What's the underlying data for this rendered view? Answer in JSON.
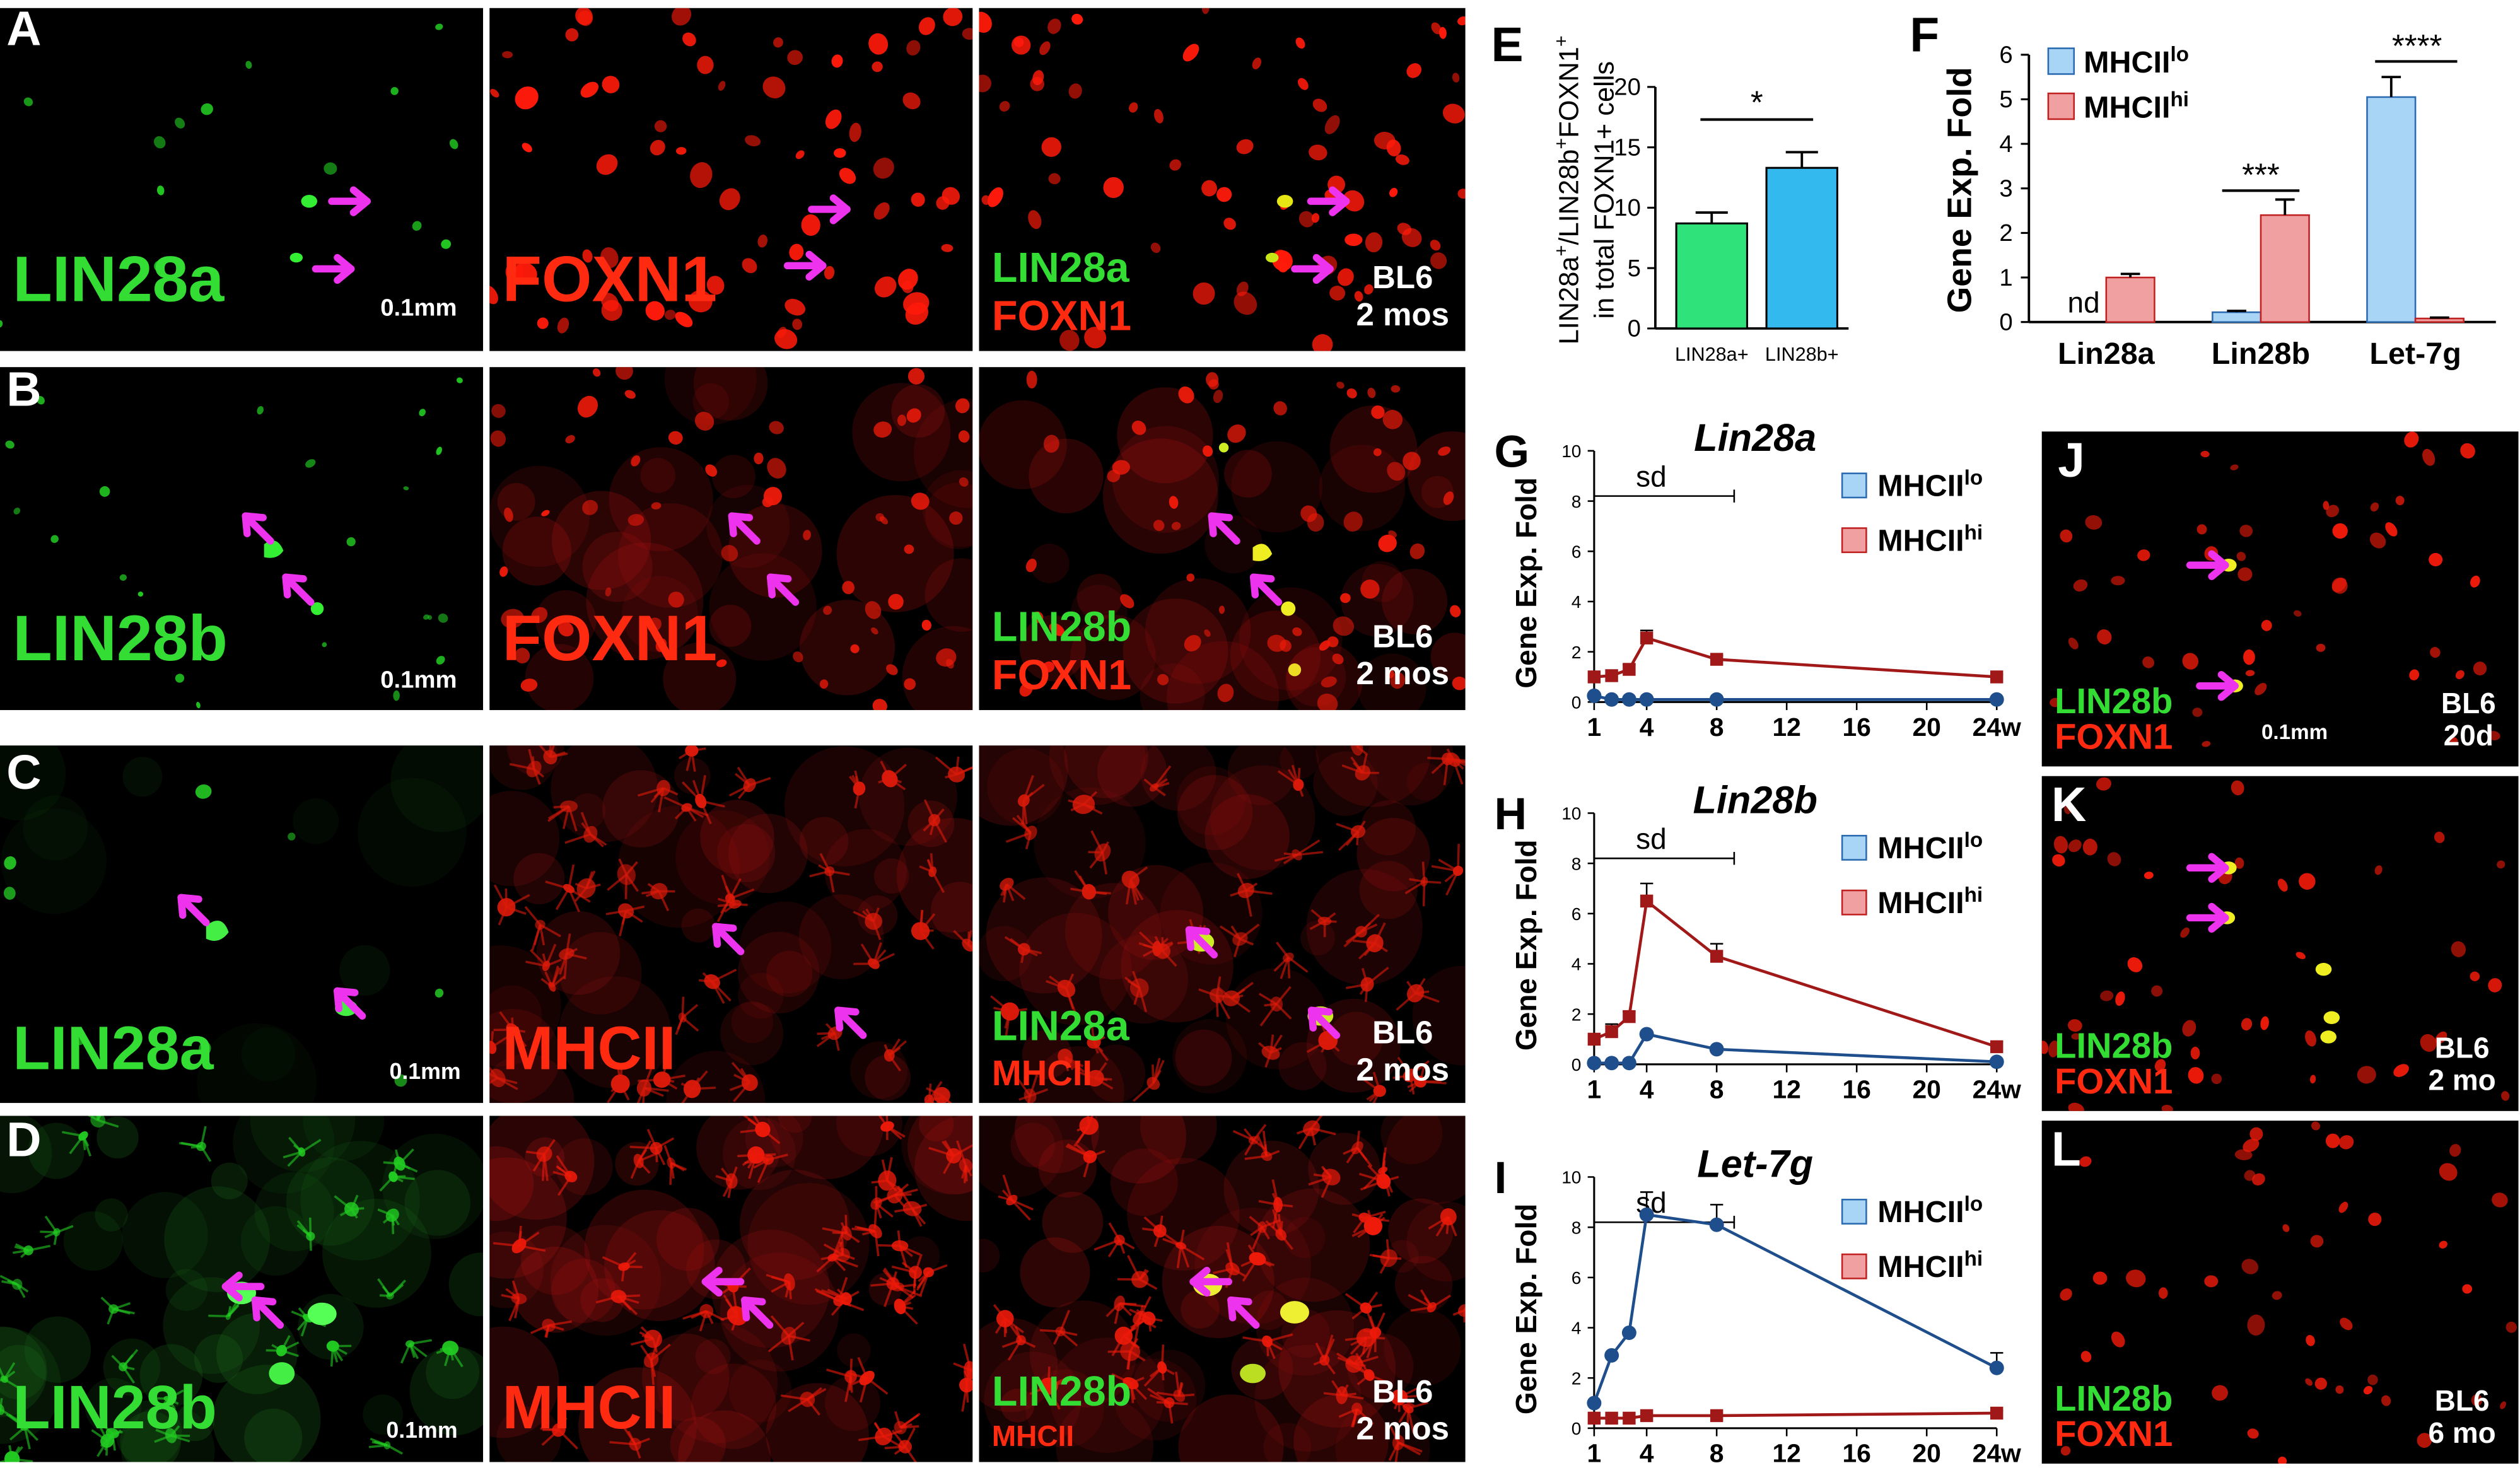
{
  "panels": {
    "A": {
      "letter": "A",
      "stain_left": "LIN28a",
      "stain_mid": "FOXN1",
      "merge_green": "LIN28a",
      "merge_red": "FOXN1",
      "strain": "BL6",
      "age": "2 mos",
      "scale": "0.1mm"
    },
    "B": {
      "letter": "B",
      "stain_left": "LIN28b",
      "stain_mid": "FOXN1",
      "merge_green": "LIN28b",
      "merge_red": "FOXN1",
      "strain": "BL6",
      "age": "2 mos",
      "scale": "0.1mm"
    },
    "C": {
      "letter": "C",
      "stain_left": "LIN28a",
      "stain_mid": "MHCII",
      "merge_green": "LIN28a",
      "merge_red": "MHCII",
      "strain": "BL6",
      "age": "2 mos",
      "scale": "0.1mm"
    },
    "D": {
      "letter": "D",
      "stain_left": "LIN28b",
      "stain_mid": "MHCII",
      "merge_green": "LIN28b",
      "merge_red": "MHCII",
      "strain": "BL6",
      "age": "2 mos",
      "scale": "0.1mm"
    },
    "J": {
      "letter": "J",
      "green": "LIN28b",
      "red": "FOXN1",
      "strain": "BL6",
      "age": "20d",
      "scale": "0.1mm"
    },
    "K": {
      "letter": "K",
      "green": "LIN28b",
      "red": "FOXN1",
      "strain": "BL6",
      "age": "2 mo"
    },
    "L": {
      "letter": "L",
      "green": "LIN28b",
      "red": "FOXN1",
      "strain": "BL6",
      "age": "6 mo"
    }
  },
  "colors": {
    "green_stain": "#33dd33",
    "red_stain": "#ff2a10",
    "arrow": "#ee33ee",
    "lo_series": "#1f4e8c",
    "hi_series": "#a01818",
    "bar_green": "#2fe37a",
    "bar_blue": "#33b9ee"
  },
  "chart_data": [
    {
      "panel": "E",
      "type": "bar",
      "ylabel_parts": [
        "LIN28a",
        "+",
        "/LIN28b",
        "+",
        "FOXN1",
        "+"
      ],
      "ylabel_line2": "in total FOXN1+ cells",
      "categories": [
        "LIN28a+",
        "LIN28b+"
      ],
      "values": [
        8.7,
        13.3
      ],
      "errors": [
        0.9,
        1.3
      ],
      "colors": [
        "#2fe37a",
        "#33b9ee"
      ],
      "ylim": [
        0,
        20
      ],
      "yticks": [
        0,
        5,
        10,
        15,
        20
      ],
      "significance": "*"
    },
    {
      "panel": "F",
      "type": "bar",
      "ylabel": "Gene Exp. Fold",
      "categories": [
        "Lin28a",
        "Lin28b",
        "Let-7g"
      ],
      "series": [
        {
          "name": "MHCII",
          "sup": "lo",
          "values": [
            0,
            0.22,
            5.05
          ],
          "errors": [
            0,
            0.03,
            0.45
          ]
        },
        {
          "name": "MHCII",
          "sup": "hi",
          "values": [
            1.0,
            2.4,
            0.08
          ],
          "errors": [
            0.08,
            0.35,
            0.02
          ]
        }
      ],
      "annotations": [
        "nd",
        "***",
        "****"
      ],
      "ylim": [
        0,
        6
      ],
      "yticks": [
        0,
        1,
        2,
        3,
        4,
        5,
        6
      ]
    },
    {
      "panel": "G",
      "type": "line",
      "title": "Lin28a",
      "ylabel": "Gene Exp. Fold",
      "x": [
        1,
        2,
        3,
        4,
        8,
        24
      ],
      "series": [
        {
          "name": "MHCII",
          "sup": "lo",
          "values": [
            0.25,
            0.1,
            0.1,
            0.1,
            0.1,
            0.1
          ],
          "errors": [
            0,
            0,
            0,
            0,
            0,
            0
          ]
        },
        {
          "name": "MHCII",
          "sup": "hi",
          "values": [
            1.0,
            1.05,
            1.3,
            2.55,
            1.7,
            1.0
          ],
          "errors": [
            0,
            0,
            0.2,
            0.3,
            0.15,
            0.1
          ]
        }
      ],
      "xticks": [
        "1",
        "4",
        "8",
        "12",
        "16",
        "20",
        "24w"
      ],
      "xtick_vals": [
        1,
        4,
        8,
        12,
        16,
        20,
        24
      ],
      "ylim": [
        0,
        10
      ],
      "yticks": [
        0,
        2,
        4,
        6,
        8,
        10
      ],
      "sd_label": "sd",
      "sd_range": [
        1,
        9
      ]
    },
    {
      "panel": "H",
      "type": "line",
      "title": "Lin28b",
      "ylabel": "Gene Exp. Fold",
      "x": [
        1,
        2,
        3,
        4,
        8,
        24
      ],
      "series": [
        {
          "name": "MHCII",
          "sup": "lo",
          "values": [
            0.05,
            0.05,
            0.05,
            1.2,
            0.6,
            0.1
          ],
          "errors": [
            0,
            0,
            0,
            0.1,
            0.1,
            0
          ]
        },
        {
          "name": "MHCII",
          "sup": "hi",
          "values": [
            1.0,
            1.3,
            1.9,
            6.5,
            4.3,
            0.7
          ],
          "errors": [
            0,
            0.3,
            0.2,
            0.7,
            0.5,
            0.2
          ]
        }
      ],
      "xticks": [
        "1",
        "4",
        "8",
        "12",
        "16",
        "20",
        "24w"
      ],
      "xtick_vals": [
        1,
        4,
        8,
        12,
        16,
        20,
        24
      ],
      "ylim": [
        0,
        10
      ],
      "yticks": [
        0,
        2,
        4,
        6,
        8,
        10
      ],
      "sd_label": "sd",
      "sd_range": [
        1,
        9
      ]
    },
    {
      "panel": "I",
      "type": "line",
      "title": "Let-7g",
      "ylabel": "Gene Exp. Fold",
      "x": [
        1,
        2,
        3,
        4,
        8,
        24
      ],
      "series": [
        {
          "name": "MHCII",
          "sup": "lo",
          "values": [
            1.0,
            2.9,
            3.8,
            8.5,
            8.1,
            2.4
          ],
          "errors": [
            0,
            0,
            0,
            0.9,
            0.8,
            0.6
          ]
        },
        {
          "name": "MHCII",
          "sup": "hi",
          "values": [
            0.4,
            0.4,
            0.4,
            0.5,
            0.5,
            0.6
          ],
          "errors": [
            0,
            0,
            0,
            0,
            0,
            0.1
          ]
        }
      ],
      "xticks": [
        "1",
        "4",
        "8",
        "12",
        "16",
        "20",
        "24w"
      ],
      "xtick_vals": [
        1,
        4,
        8,
        12,
        16,
        20,
        24
      ],
      "ylim": [
        0,
        10
      ],
      "yticks": [
        0,
        2,
        4,
        6,
        8,
        10
      ],
      "sd_label": "sd",
      "sd_range": [
        1,
        9
      ]
    }
  ]
}
